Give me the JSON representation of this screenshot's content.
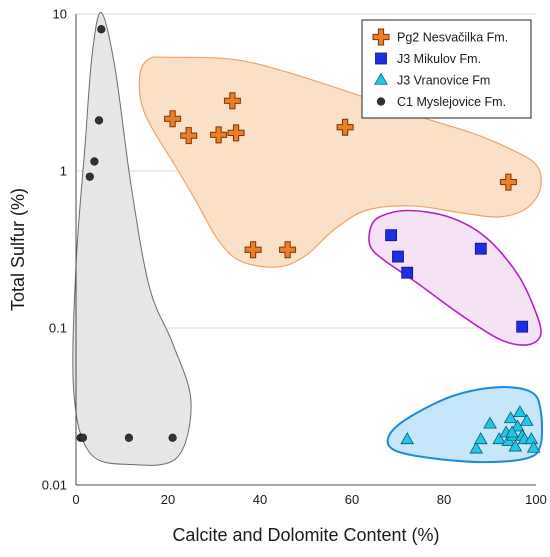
{
  "chart_data": {
    "type": "scatter",
    "title": "",
    "xlabel": "Calcite and Dolomite Content (%)",
    "ylabel": "Total Sulfur (%)",
    "xlim": [
      0,
      100
    ],
    "ylim": [
      0.01,
      10
    ],
    "y_scale": "log",
    "x_ticks": [
      0,
      20,
      40,
      60,
      80,
      100
    ],
    "y_ticks": [
      0.01,
      0.1,
      1,
      10
    ],
    "x_tick_labels": [
      "0",
      "20",
      "40",
      "60",
      "80",
      "100"
    ],
    "y_tick_labels": [
      "0.01",
      "0.1",
      "1",
      "10"
    ],
    "grid": "horizontal",
    "legend_position": "top-right",
    "series": [
      {
        "name": "Pg2 Nesvačilka Fm.",
        "marker": "plus",
        "color": "#f07e26",
        "stroke": "#7a3400",
        "region_fill": "#fbe0c8",
        "region_stroke": "#f0a463",
        "points": [
          [
            21,
            2.15
          ],
          [
            24.5,
            1.68
          ],
          [
            31,
            1.7
          ],
          [
            34,
            2.8
          ],
          [
            34.8,
            1.75
          ],
          [
            38.5,
            0.315
          ],
          [
            46,
            0.315
          ],
          [
            58.5,
            1.9
          ],
          [
            94,
            0.85
          ]
        ]
      },
      {
        "name": "J3 Mikulov Fm.",
        "marker": "square",
        "color": "#1e2ee6",
        "stroke": "#0b127a",
        "region_fill": "#f5e2f5",
        "region_stroke": "#b324c4",
        "points": [
          [
            68.5,
            0.39
          ],
          [
            70,
            0.285
          ],
          [
            72,
            0.225
          ],
          [
            88,
            0.32
          ],
          [
            97,
            0.102
          ]
        ]
      },
      {
        "name": "J3 Vranovice Fm",
        "marker": "triangle",
        "color": "#22c6ea",
        "stroke": "#0b5a70",
        "region_fill": "#c6e6fb",
        "region_stroke": "#1a8ae0",
        "points": [
          [
            72,
            0.0195
          ],
          [
            87,
            0.017
          ],
          [
            88,
            0.0195
          ],
          [
            90,
            0.0245
          ],
          [
            92,
            0.0195
          ],
          [
            93.5,
            0.0215
          ],
          [
            94,
            0.019
          ],
          [
            94.5,
            0.0265
          ],
          [
            95,
            0.0205
          ],
          [
            95.5,
            0.0175
          ],
          [
            96,
            0.0235
          ],
          [
            96.5,
            0.029
          ],
          [
            97,
            0.0205
          ],
          [
            97.5,
            0.0195
          ],
          [
            98,
            0.0255
          ],
          [
            99,
            0.0195
          ],
          [
            99.5,
            0.0172
          ],
          [
            94.8,
            0.0215
          ]
        ]
      },
      {
        "name": "C1 Myslejovice Fm.",
        "marker": "circle",
        "color": "#333333",
        "stroke": "#111111",
        "region_fill": "#e6e6e6",
        "region_stroke": "#6a6a6a",
        "points": [
          [
            5.5,
            8.0
          ],
          [
            5,
            2.1
          ],
          [
            4,
            1.15
          ],
          [
            3,
            0.92
          ],
          [
            1,
            0.02
          ],
          [
            1.5,
            0.02
          ],
          [
            11.5,
            0.02
          ],
          [
            21,
            0.02
          ]
        ]
      }
    ]
  }
}
